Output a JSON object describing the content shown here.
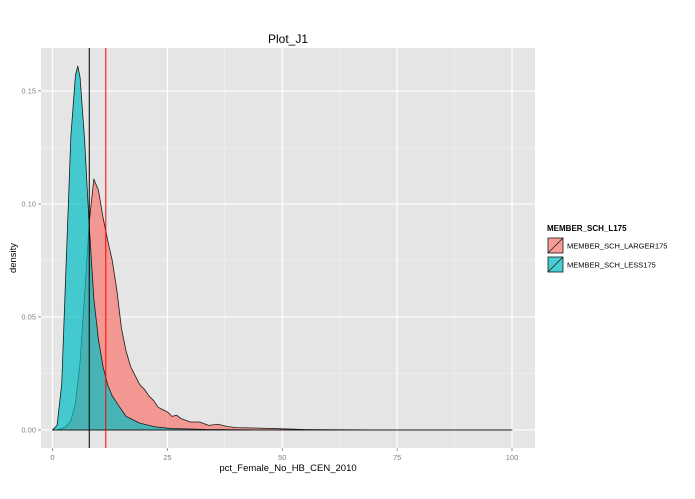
{
  "chart_data": {
    "type": "area",
    "title": "Plot_J1",
    "xlabel": "pct_Female_No_HB_CEN_2010",
    "ylabel": "density",
    "xlim": [
      -2.5,
      105
    ],
    "ylim": [
      -0.008,
      0.169
    ],
    "x_ticks": [
      0,
      25,
      50,
      75,
      100
    ],
    "x_tick_labels": [
      "0",
      "25",
      "50",
      "75",
      "100"
    ],
    "y_ticks": [
      0.0,
      0.05,
      0.1,
      0.15
    ],
    "y_tick_labels": [
      "0.00",
      "0.05",
      "0.10",
      "0.15"
    ],
    "grid": true,
    "legend": {
      "title": "MEMBER_SCH_L175",
      "position": "right"
    },
    "series": [
      {
        "name": "MEMBER_SCH_LARGER175",
        "color": "#F8766D",
        "x": [
          0,
          1,
          2,
          3,
          4,
          5,
          6,
          7,
          8,
          9,
          10,
          11,
          12,
          13,
          14,
          15,
          16,
          17,
          18,
          19,
          20,
          21,
          22,
          23,
          24,
          25,
          26,
          27,
          28,
          30,
          32,
          34,
          36,
          38,
          40,
          45,
          50,
          55,
          60,
          70,
          80,
          90,
          100
        ],
        "y": [
          0.0,
          0.0,
          0.0005,
          0.0015,
          0.004,
          0.012,
          0.03,
          0.06,
          0.092,
          0.111,
          0.106,
          0.094,
          0.084,
          0.075,
          0.062,
          0.045,
          0.035,
          0.028,
          0.024,
          0.02,
          0.018,
          0.015,
          0.013,
          0.01,
          0.009,
          0.008,
          0.006,
          0.0065,
          0.005,
          0.0035,
          0.0035,
          0.002,
          0.0025,
          0.0015,
          0.001,
          0.0008,
          0.0005,
          0.0002,
          0.0001,
          0.0,
          0.0,
          0.0,
          0.0
        ]
      },
      {
        "name": "MEMBER_SCH_LESS175",
        "color": "#00BFC4",
        "x": [
          0,
          1,
          2,
          3,
          4,
          5,
          5.5,
          6,
          7,
          8,
          9,
          10,
          11,
          12,
          13,
          14,
          15,
          16,
          17,
          18,
          19,
          20,
          21,
          22,
          23,
          24,
          25,
          26,
          28,
          30,
          32,
          34,
          36,
          40,
          45,
          50,
          60,
          70,
          80,
          90,
          100
        ],
        "y": [
          0.0,
          0.002,
          0.02,
          0.075,
          0.13,
          0.157,
          0.161,
          0.156,
          0.128,
          0.09,
          0.058,
          0.04,
          0.028,
          0.02,
          0.015,
          0.012,
          0.009,
          0.006,
          0.005,
          0.004,
          0.003,
          0.0025,
          0.002,
          0.0015,
          0.0012,
          0.001,
          0.0008,
          0.0006,
          0.0005,
          0.0004,
          0.0003,
          0.0002,
          0.0002,
          0.0001,
          0.0,
          0.0,
          0.0,
          0.0,
          0.0,
          0.0,
          0.0
        ]
      }
    ],
    "reference_lines": [
      {
        "axis": "x",
        "value": 8.0,
        "color": "#000000"
      },
      {
        "axis": "x",
        "value": 11.6,
        "color": "#FF0000"
      }
    ]
  }
}
